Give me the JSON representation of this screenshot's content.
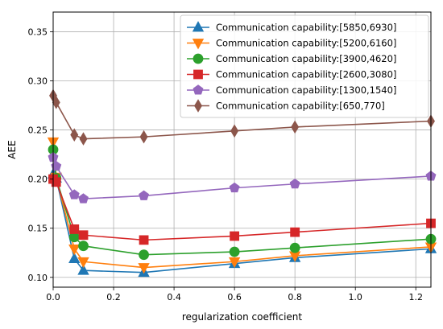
{
  "chart_data": {
    "type": "line",
    "title": "",
    "xlabel": "regularization coefficient",
    "ylabel": "AEE",
    "xlim": [
      0,
      1.25
    ],
    "ylim": [
      0.09,
      0.37
    ],
    "xticks": [
      0.0,
      0.2,
      0.4,
      0.6,
      0.8,
      1.0,
      1.2
    ],
    "xtick_labels": [
      "0.0",
      "0.2",
      "0.4",
      "0.6",
      "0.8",
      "1.0",
      "1.2"
    ],
    "yticks": [
      0.1,
      0.15,
      0.2,
      0.25,
      0.3,
      0.35
    ],
    "ytick_labels": [
      "0.10",
      "0.15",
      "0.20",
      "0.25",
      "0.30",
      "0.35"
    ],
    "grid": true,
    "legend_position": "top-right",
    "x": [
      0.0,
      0.01,
      0.07,
      0.1,
      0.3,
      0.6,
      0.8,
      1.25
    ],
    "series": [
      {
        "name": "Communication capability:[5850,6930]",
        "color": "#1f77b4",
        "marker": "triangle-up",
        "values": [
          0.205,
          0.201,
          0.119,
          0.107,
          0.105,
          0.114,
          0.12,
          0.129
        ]
      },
      {
        "name": "Communication capability:[5200,6160]",
        "color": "#ff7f0e",
        "marker": "triangle-down",
        "values": [
          0.238,
          0.202,
          0.129,
          0.116,
          0.11,
          0.116,
          0.122,
          0.131
        ]
      },
      {
        "name": "Communication capability:[3900,4620]",
        "color": "#2ca02c",
        "marker": "circle",
        "values": [
          0.23,
          0.201,
          0.141,
          0.132,
          0.123,
          0.126,
          0.13,
          0.139
        ]
      },
      {
        "name": "Communication capability:[2600,3080]",
        "color": "#d62728",
        "marker": "square",
        "values": [
          0.2,
          0.197,
          0.149,
          0.143,
          0.138,
          0.142,
          0.146,
          0.155
        ]
      },
      {
        "name": "Communication capability:[1300,1540]",
        "color": "#9467bd",
        "marker": "pentagon",
        "values": [
          0.222,
          0.213,
          0.184,
          0.18,
          0.183,
          0.191,
          0.195,
          0.203
        ]
      },
      {
        "name": "Communication capability:[650,770]",
        "color": "#8c564b",
        "marker": "diamond",
        "values": [
          0.285,
          0.278,
          0.245,
          0.241,
          0.243,
          0.249,
          0.253,
          0.259
        ]
      }
    ]
  }
}
